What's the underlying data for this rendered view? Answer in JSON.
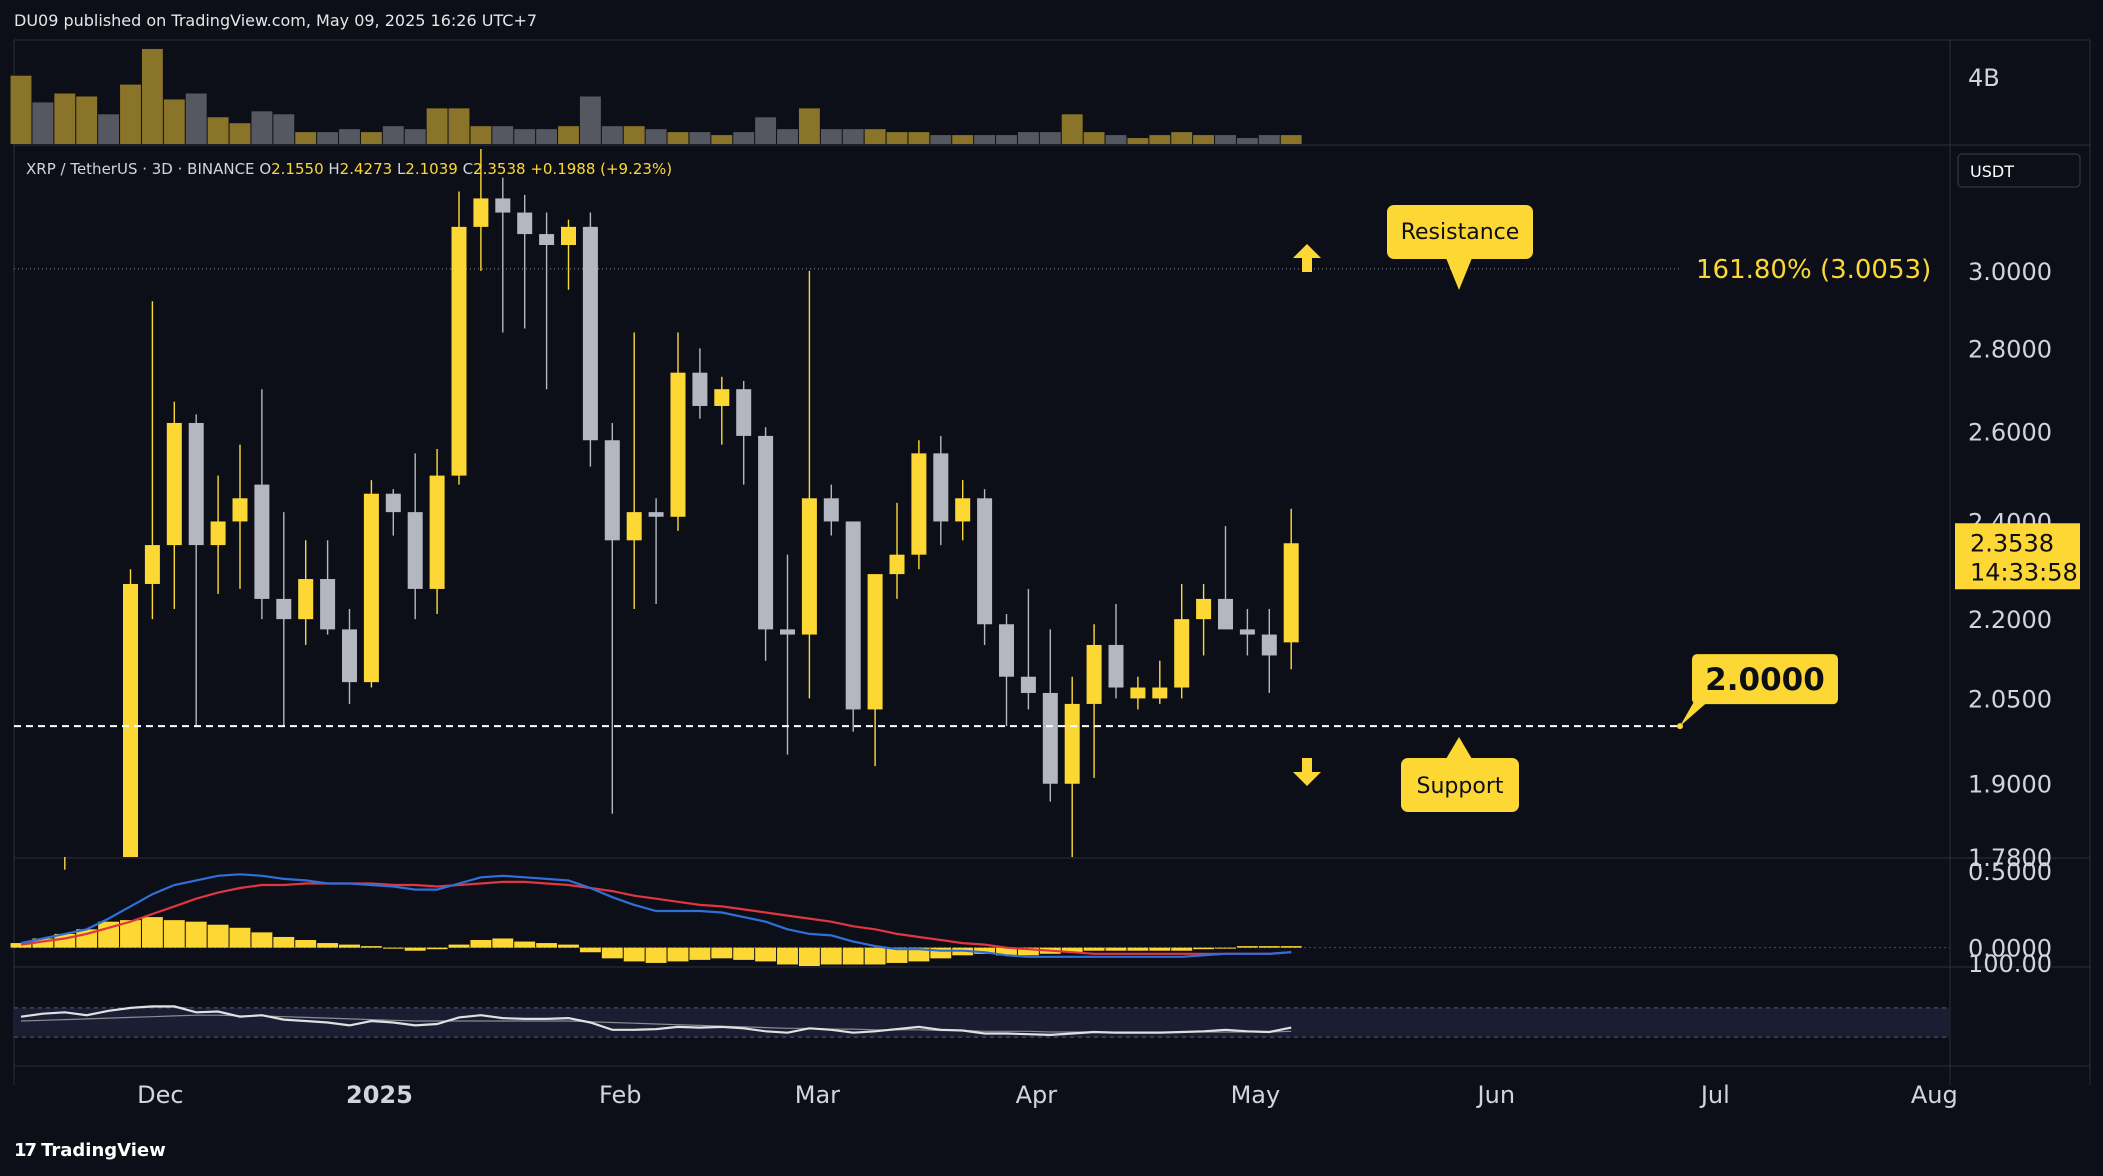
{
  "header": {
    "published_by": "DU09 published on TradingView.com, May 09, 2025 16:26 UTC+7"
  },
  "brand": {
    "name": "TradingView",
    "icon": "tradingview-logo-icon"
  },
  "colors": {
    "background": "#0d0f18",
    "up": "#fdd835",
    "down": "#b5b7c0",
    "volume_up": "#8a7429",
    "volume_down": "#565861",
    "macd_line": "#2f6fd8",
    "signal_line": "#e0363f",
    "histogram": "#fdd835",
    "rsi_line": "#e0e0e0",
    "label_bg": "#fdd835",
    "label_text": "#0d0f18"
  },
  "chart_data": {
    "type": "candlestick",
    "legend": {
      "symbol": "XRP / TetherUS · 3D · BINANCE",
      "o_label": "O",
      "o_value": "2.1550",
      "h_label": "H",
      "h_value": "2.4273",
      "l_label": "L",
      "l_value": "2.1039",
      "c_label": "C",
      "c_value": "2.3538",
      "change": "+0.1988 (+9.23%)"
    },
    "currency_button": "USDT",
    "price_axis": {
      "ticks": [
        "3.0000",
        "2.8000",
        "2.6000",
        "2.4000",
        "2.2000",
        "2.0500",
        "1.9000",
        "1.7800"
      ],
      "tick_values": [
        3.0,
        2.8,
        2.6,
        2.4,
        2.2,
        2.05,
        1.9,
        1.78
      ],
      "scale": "log",
      "ylim": [
        1.78,
        3.35
      ]
    },
    "time_axis": {
      "ticks": [
        "Dec",
        "2025",
        "Feb",
        "Mar",
        "Apr",
        "May",
        "Jun",
        "Jul",
        "Aug"
      ],
      "tick_candle_index": [
        6,
        16,
        27,
        36,
        46,
        56,
        67,
        77,
        87
      ]
    },
    "current_price": {
      "price": 2.3538,
      "value": "2.3538",
      "countdown": "14:33:58"
    },
    "fib_level": {
      "price": 3.0053,
      "label": "161.80% (3.0053)"
    },
    "support_level": {
      "price": 2.0,
      "label": "2.0000"
    },
    "annotations": {
      "resistance": "Resistance",
      "support": "Support"
    },
    "candles": [
      {
        "o": 1.5,
        "h": 1.78,
        "l": 1.45,
        "c": 1.72
      },
      {
        "o": 1.72,
        "h": 1.78,
        "l": 1.6,
        "c": 1.65
      },
      {
        "o": 1.65,
        "h": 1.76,
        "l": 1.55,
        "c": 1.7
      },
      {
        "o": 1.7,
        "h": 1.78,
        "l": 1.62,
        "c": 1.74
      },
      {
        "o": 1.74,
        "h": 1.78,
        "l": 1.66,
        "c": 1.7
      },
      {
        "o": 1.7,
        "h": 2.3,
        "l": 1.68,
        "c": 2.27
      },
      {
        "o": 2.27,
        "h": 2.92,
        "l": 2.2,
        "c": 2.35
      },
      {
        "o": 2.35,
        "h": 2.67,
        "l": 2.22,
        "c": 2.62
      },
      {
        "o": 2.62,
        "h": 2.64,
        "l": 2.0,
        "c": 2.35
      },
      {
        "o": 2.35,
        "h": 2.5,
        "l": 2.25,
        "c": 2.4
      },
      {
        "o": 2.4,
        "h": 2.57,
        "l": 2.26,
        "c": 2.45
      },
      {
        "o": 2.48,
        "h": 2.7,
        "l": 2.2,
        "c": 2.24
      },
      {
        "o": 2.24,
        "h": 2.42,
        "l": 2.0,
        "c": 2.2
      },
      {
        "o": 2.2,
        "h": 2.36,
        "l": 2.15,
        "c": 2.28
      },
      {
        "o": 2.28,
        "h": 2.36,
        "l": 2.17,
        "c": 2.18
      },
      {
        "o": 2.18,
        "h": 2.22,
        "l": 2.04,
        "c": 2.08
      },
      {
        "o": 2.08,
        "h": 2.49,
        "l": 2.07,
        "c": 2.46
      },
      {
        "o": 2.46,
        "h": 2.47,
        "l": 2.37,
        "c": 2.42
      },
      {
        "o": 2.42,
        "h": 2.55,
        "l": 2.2,
        "c": 2.26
      },
      {
        "o": 2.26,
        "h": 2.56,
        "l": 2.21,
        "c": 2.5
      },
      {
        "o": 2.5,
        "h": 3.22,
        "l": 2.48,
        "c": 3.12
      },
      {
        "o": 3.12,
        "h": 3.4,
        "l": 3.0,
        "c": 3.2
      },
      {
        "o": 3.2,
        "h": 3.26,
        "l": 2.84,
        "c": 3.16
      },
      {
        "o": 3.16,
        "h": 3.21,
        "l": 2.85,
        "c": 3.1
      },
      {
        "o": 3.1,
        "h": 3.16,
        "l": 2.7,
        "c": 3.07
      },
      {
        "o": 3.07,
        "h": 3.14,
        "l": 2.95,
        "c": 3.12
      },
      {
        "o": 3.12,
        "h": 3.16,
        "l": 2.52,
        "c": 2.58
      },
      {
        "o": 2.58,
        "h": 2.62,
        "l": 1.85,
        "c": 2.36
      },
      {
        "o": 2.36,
        "h": 2.84,
        "l": 2.22,
        "c": 2.42
      },
      {
        "o": 2.42,
        "h": 2.45,
        "l": 2.23,
        "c": 2.41
      },
      {
        "o": 2.41,
        "h": 2.84,
        "l": 2.38,
        "c": 2.74
      },
      {
        "o": 2.74,
        "h": 2.8,
        "l": 2.63,
        "c": 2.66
      },
      {
        "o": 2.66,
        "h": 2.73,
        "l": 2.57,
        "c": 2.7
      },
      {
        "o": 2.7,
        "h": 2.72,
        "l": 2.48,
        "c": 2.59
      },
      {
        "o": 2.59,
        "h": 2.61,
        "l": 2.12,
        "c": 2.18
      },
      {
        "o": 2.18,
        "h": 2.33,
        "l": 1.95,
        "c": 2.17
      },
      {
        "o": 2.17,
        "h": 3.0,
        "l": 2.05,
        "c": 2.45
      },
      {
        "o": 2.45,
        "h": 2.48,
        "l": 2.37,
        "c": 2.4
      },
      {
        "o": 2.4,
        "h": 2.4,
        "l": 1.99,
        "c": 2.03
      },
      {
        "o": 2.03,
        "h": 2.29,
        "l": 1.93,
        "c": 2.29
      },
      {
        "o": 2.29,
        "h": 2.44,
        "l": 2.24,
        "c": 2.33
      },
      {
        "o": 2.33,
        "h": 2.58,
        "l": 2.3,
        "c": 2.55
      },
      {
        "o": 2.55,
        "h": 2.59,
        "l": 2.35,
        "c": 2.4
      },
      {
        "o": 2.4,
        "h": 2.49,
        "l": 2.36,
        "c": 2.45
      },
      {
        "o": 2.45,
        "h": 2.47,
        "l": 2.15,
        "c": 2.19
      },
      {
        "o": 2.19,
        "h": 2.21,
        "l": 2.0,
        "c": 2.09
      },
      {
        "o": 2.09,
        "h": 2.26,
        "l": 2.03,
        "c": 2.06
      },
      {
        "o": 2.06,
        "h": 2.18,
        "l": 1.87,
        "c": 1.9
      },
      {
        "o": 1.9,
        "h": 2.09,
        "l": 1.76,
        "c": 2.04
      },
      {
        "o": 2.04,
        "h": 2.19,
        "l": 1.91,
        "c": 2.15
      },
      {
        "o": 2.15,
        "h": 2.23,
        "l": 2.05,
        "c": 2.07
      },
      {
        "o": 2.05,
        "h": 2.09,
        "l": 2.03,
        "c": 2.07
      },
      {
        "o": 2.05,
        "h": 2.12,
        "l": 2.04,
        "c": 2.07
      },
      {
        "o": 2.07,
        "h": 2.27,
        "l": 2.05,
        "c": 2.2
      },
      {
        "o": 2.2,
        "h": 2.27,
        "l": 2.13,
        "c": 2.24
      },
      {
        "o": 2.24,
        "h": 2.39,
        "l": 2.18,
        "c": 2.18
      },
      {
        "o": 2.18,
        "h": 2.22,
        "l": 2.13,
        "c": 2.17
      },
      {
        "o": 2.17,
        "h": 2.22,
        "l": 2.06,
        "c": 2.13
      },
      {
        "o": 2.155,
        "h": 2.4273,
        "l": 2.1039,
        "c": 2.3538
      }
    ],
    "volume": {
      "axis_label": "4B",
      "values": [
        2.3,
        1.4,
        1.7,
        1.6,
        1.0,
        2.0,
        3.2,
        1.5,
        1.7,
        0.9,
        0.7,
        1.1,
        1.0,
        0.4,
        0.4,
        0.5,
        0.4,
        0.6,
        0.5,
        1.2,
        1.2,
        0.6,
        0.6,
        0.5,
        0.5,
        0.6,
        1.6,
        0.6,
        0.6,
        0.5,
        0.4,
        0.4,
        0.3,
        0.4,
        0.9,
        0.5,
        1.2,
        0.5,
        0.5,
        0.5,
        0.4,
        0.4,
        0.3,
        0.3,
        0.3,
        0.3,
        0.4,
        0.4,
        1.0,
        0.4,
        0.3,
        0.2,
        0.3,
        0.4,
        0.3,
        0.3,
        0.2,
        0.3,
        0.3
      ]
    },
    "macd": {
      "axis_ticks": [
        "0.5000",
        "0.0000"
      ],
      "tick_values": [
        0.5,
        0.0
      ],
      "ylim": [
        -0.12,
        0.58
      ],
      "macd": [
        0.03,
        0.06,
        0.09,
        0.12,
        0.19,
        0.27,
        0.35,
        0.41,
        0.44,
        0.47,
        0.48,
        0.47,
        0.45,
        0.44,
        0.42,
        0.42,
        0.41,
        0.4,
        0.38,
        0.38,
        0.42,
        0.46,
        0.47,
        0.46,
        0.45,
        0.44,
        0.39,
        0.33,
        0.28,
        0.24,
        0.24,
        0.24,
        0.23,
        0.2,
        0.17,
        0.12,
        0.09,
        0.08,
        0.04,
        0.01,
        -0.01,
        -0.01,
        -0.02,
        -0.02,
        -0.03,
        -0.05,
        -0.06,
        -0.06,
        -0.06,
        -0.06,
        -0.06,
        -0.06,
        -0.06,
        -0.06,
        -0.05,
        -0.04,
        -0.04,
        -0.04,
        -0.03
      ],
      "signal": [
        0.02,
        0.04,
        0.06,
        0.09,
        0.13,
        0.17,
        0.22,
        0.27,
        0.32,
        0.36,
        0.39,
        0.41,
        0.41,
        0.42,
        0.42,
        0.42,
        0.42,
        0.41,
        0.41,
        0.4,
        0.41,
        0.42,
        0.43,
        0.43,
        0.42,
        0.41,
        0.39,
        0.37,
        0.34,
        0.32,
        0.3,
        0.28,
        0.27,
        0.25,
        0.23,
        0.21,
        0.19,
        0.17,
        0.14,
        0.12,
        0.09,
        0.07,
        0.05,
        0.03,
        0.02,
        0.0,
        -0.01,
        -0.02,
        -0.03,
        -0.04,
        -0.04,
        -0.04,
        -0.04,
        -0.04,
        -0.04,
        -0.04,
        -0.04,
        -0.04,
        -0.03
      ],
      "histogram": [
        0.03,
        0.06,
        0.09,
        0.12,
        0.17,
        0.18,
        0.2,
        0.18,
        0.17,
        0.15,
        0.13,
        0.1,
        0.07,
        0.05,
        0.03,
        0.02,
        0.01,
        0.0,
        -0.02,
        -0.01,
        0.02,
        0.05,
        0.06,
        0.04,
        0.03,
        0.02,
        -0.03,
        -0.07,
        -0.09,
        -0.1,
        -0.09,
        -0.08,
        -0.07,
        -0.08,
        -0.09,
        -0.11,
        -0.12,
        -0.11,
        -0.11,
        -0.11,
        -0.1,
        -0.09,
        -0.07,
        -0.05,
        -0.04,
        -0.05,
        -0.05,
        -0.04,
        -0.03,
        -0.02,
        -0.02,
        -0.02,
        -0.02,
        -0.02,
        -0.01,
        0.0,
        0.01,
        0.01,
        0.01
      ]
    },
    "rsi": {
      "axis_tick": "100.00",
      "tick_value": 100,
      "ylim": [
        0,
        100
      ],
      "band": [
        30,
        70
      ],
      "rsi": [
        58,
        62,
        64,
        60,
        66,
        70,
        72,
        72,
        64,
        65,
        58,
        60,
        54,
        52,
        50,
        46,
        52,
        50,
        46,
        48,
        57,
        60,
        56,
        55,
        55,
        56,
        50,
        40,
        40,
        41,
        44,
        43,
        44,
        42,
        38,
        36,
        42,
        40,
        36,
        38,
        41,
        44,
        40,
        39,
        35,
        35,
        34,
        33,
        35,
        37,
        36,
        36,
        36,
        37,
        38,
        40,
        38,
        37,
        43
      ],
      "rsi_ma": [
        52,
        53,
        54,
        55,
        56,
        57,
        58,
        59,
        60,
        60,
        59,
        59,
        58,
        57,
        56,
        55,
        54,
        53,
        52,
        52,
        52,
        52,
        52,
        52,
        52,
        52,
        51,
        50,
        49,
        48,
        47,
        46,
        45,
        44,
        43,
        42,
        42,
        41,
        41,
        40,
        40,
        40,
        39,
        39,
        38,
        38,
        38,
        37,
        37,
        37,
        37,
        37,
        37,
        37,
        37,
        37,
        37,
        37,
        38
      ]
    }
  }
}
